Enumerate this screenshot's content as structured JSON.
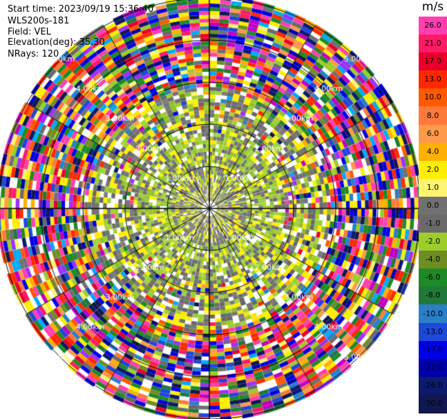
{
  "chart_data": {
    "type": "heatmap",
    "subtype": "ppi-radar-scan",
    "info": {
      "start_time": "Start time: 2023/09/19 15:36:40",
      "instrument": "WLS200s-181",
      "field": "Field: VEL",
      "elevation": "Elevation(deg): 35.30",
      "nrays": "NRays: 120"
    },
    "n_rays": 120,
    "range_ring_labels": [
      "1.00km",
      "2.00km",
      "3.00km",
      "4.00km",
      "5.00km"
    ],
    "range_ring_label_positions": [
      "upper-right",
      "upper-left",
      "lower-left",
      "lower-right"
    ],
    "colorbar": {
      "unit": "m/s",
      "ticks": [
        "26.0",
        "21.0",
        "17.0",
        "13.0",
        "10.0",
        "8.0",
        "6.0",
        "4.0",
        "2.0",
        "1.0",
        "0.0",
        "-1.0",
        "-2.0",
        "-4.0",
        "-6.0",
        "-8.0",
        "-10.0",
        "-13.0",
        "-17.0",
        "-21.0",
        "-26.0",
        "-30.0"
      ],
      "colors": [
        "#ff3fb0",
        "#ff1a66",
        "#e8002a",
        "#ff2800",
        "#ff5a00",
        "#ff7a3a",
        "#ff9a4a",
        "#ffb000",
        "#ffee00",
        "#fff570",
        "#707070",
        "#6a6a6a",
        "#9ccd2a",
        "#6e8e22",
        "#1e8a26",
        "#1f7a3a",
        "#2a7fc8",
        "#1e48d8",
        "#0000e6",
        "#0000aa",
        "#0d1a6e",
        "#111850"
      ]
    },
    "grid": true
  }
}
